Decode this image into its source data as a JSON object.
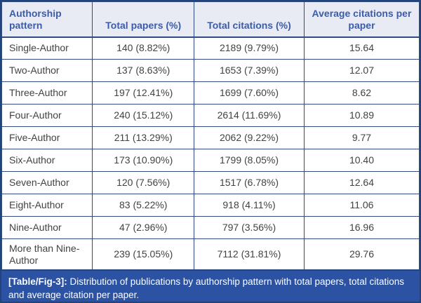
{
  "table": {
    "headers": [
      "Authorship pattern",
      "Total papers (%)",
      "Total citations (%)",
      "Average citations per paper"
    ],
    "rows": [
      [
        "Single-Author",
        "140 (8.82%)",
        "2189 (9.79%)",
        "15.64"
      ],
      [
        "Two-Author",
        "137 (8.63%)",
        "1653 (7.39%)",
        "12.07"
      ],
      [
        "Three-Author",
        "197 (12.41%)",
        "1699 (7.60%)",
        "8.62"
      ],
      [
        "Four-Author",
        "240 (15.12%)",
        "2614 (11.69%)",
        "10.89"
      ],
      [
        "Five-Author",
        "211 (13.29%)",
        "2062 (9.22%)",
        "9.77"
      ],
      [
        "Six-Author",
        "173 (10.90%)",
        "1799 (8.05%)",
        "10.40"
      ],
      [
        "Seven-Author",
        "120 (7.56%)",
        "1517 (6.78%)",
        "12.64"
      ],
      [
        "Eight-Author",
        "83 (5.22%)",
        "918 (4.11%)",
        "11.06"
      ],
      [
        "Nine-Author",
        "47 (2.96%)",
        "797 (3.56%)",
        "16.96"
      ],
      [
        "More than Nine-Author",
        "239 (15.05%)",
        "7112 (31.81%)",
        "29.76"
      ]
    ],
    "caption_label": "[Table/Fig-3]:",
    "caption_text": "Distribution of publications by authorship pattern with total papers, total citations and average citation per paper."
  },
  "colors": {
    "header_bg": "#e9ebf4",
    "header_text": "#3b5ca9",
    "border": "#2e4c80",
    "outer_border": "#24437a",
    "body_text": "#414244",
    "caption_bg": "#2b52a3",
    "caption_text": "#fdfdfe"
  }
}
